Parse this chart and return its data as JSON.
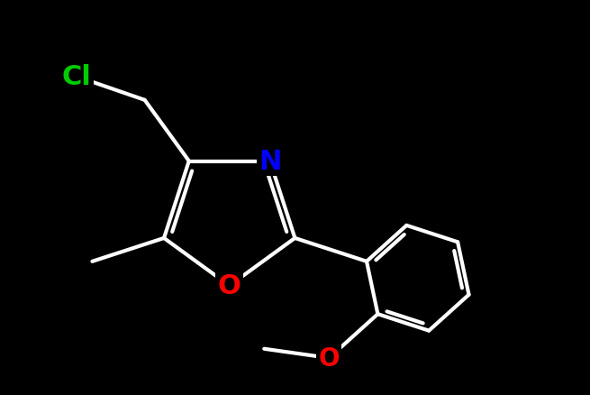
{
  "background_color": "#000000",
  "bond_color": "#ffffff",
  "bond_width": 3.0,
  "N_color": "#0000ff",
  "O_color": "#ff0000",
  "Cl_color": "#00cc00",
  "figsize": [
    6.55,
    4.39
  ],
  "dpi": 100,
  "font_size": 22,
  "small_font_size": 20,
  "xlim": [
    -3.5,
    5.5
  ],
  "ylim": [
    -3.0,
    3.0
  ]
}
